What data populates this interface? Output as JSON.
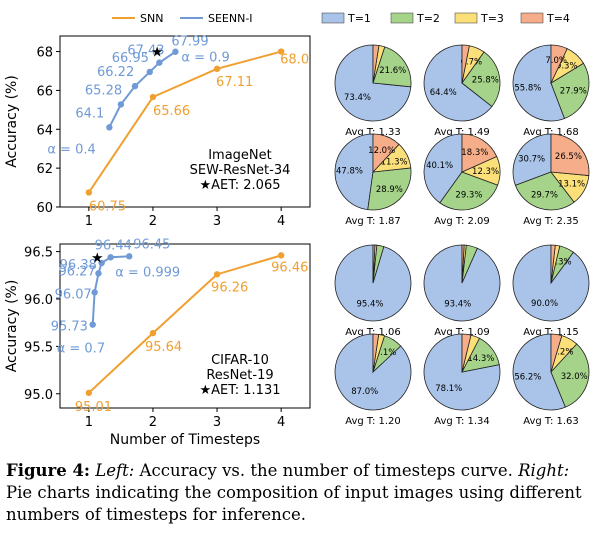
{
  "caption": {
    "label": "Figure 4:",
    "left_word": "Left:",
    "left_text": " Accuracy vs. the number of timesteps curve.",
    "right_word": "Right:",
    "right_text": " Pie charts indicating the composition of input images using different numbers of timesteps for inference."
  },
  "colors": {
    "snn": "#f0a030",
    "seenn": "#6f9ad6",
    "t1": "#a9c4e8",
    "t2": "#a5d38a",
    "t3": "#fbe07a",
    "t4": "#f6ad8a"
  },
  "chart_data": [
    {
      "type": "line",
      "panel": "imagenet-line",
      "legend": [
        "SNN",
        "SEENN-I"
      ],
      "xlabel": "",
      "ylabel": "Accuracy (%)",
      "xlim": [
        0.55,
        4.45
      ],
      "ylim": [
        60,
        68.8
      ],
      "xticks": [
        1,
        2,
        3,
        4
      ],
      "yticks": [
        60,
        62,
        64,
        66,
        68
      ],
      "annotation": [
        "ImageNet",
        "SEW-ResNet-34",
        "★AET: 2.065"
      ],
      "series": [
        {
          "name": "SNN",
          "x": [
            1,
            2,
            3,
            4
          ],
          "y": [
            60.75,
            65.66,
            67.11,
            68.0
          ],
          "labels": [
            "60.75",
            "65.66",
            "67.11",
            "68.0"
          ]
        },
        {
          "name": "SEENN-I",
          "x": [
            1.32,
            1.5,
            1.72,
            1.95,
            2.1,
            2.35
          ],
          "y": [
            64.1,
            65.28,
            66.22,
            66.95,
            67.43,
            67.99
          ],
          "labels": [
            "64.1",
            "65.28",
            "66.22",
            "66.95",
            "67.43",
            "67.99"
          ]
        }
      ],
      "alpha_labels": [
        "α = 0.4",
        "α = 0.9"
      ],
      "star": {
        "x": 2.065,
        "y": 68.0
      }
    },
    {
      "type": "line",
      "panel": "cifar-line",
      "xlabel": "Number of Timesteps",
      "ylabel": "Accuracy (%)",
      "xlim": [
        0.55,
        4.45
      ],
      "ylim": [
        94.85,
        96.58
      ],
      "xticks": [
        1,
        2,
        3,
        4
      ],
      "yticks": [
        95.0,
        95.5,
        96.0,
        96.5
      ],
      "annotation": [
        "CIFAR-10",
        "ResNet-19",
        "★AET: 1.131"
      ],
      "series": [
        {
          "name": "SNN",
          "x": [
            1,
            2,
            3,
            4
          ],
          "y": [
            95.01,
            95.64,
            96.26,
            96.46
          ],
          "labels": [
            "95.01",
            "95.64",
            "96.26",
            "96.46"
          ]
        },
        {
          "name": "SEENN-I",
          "x": [
            1.06,
            1.09,
            1.15,
            1.2,
            1.34,
            1.63
          ],
          "y": [
            95.73,
            96.07,
            96.27,
            96.38,
            96.44,
            96.45
          ],
          "labels": [
            "95.73",
            "96.07",
            "96.27",
            "96.38",
            "96.44",
            "96.45"
          ]
        }
      ],
      "alpha_labels": [
        "α = 0.7",
        "α = 0.999"
      ],
      "star": {
        "x": 1.131,
        "y": 96.44
      }
    },
    {
      "type": "pie",
      "panel": "imagenet-pies",
      "legend": [
        "T=1",
        "T=2",
        "T=3",
        "T=4"
      ],
      "pies": [
        {
          "label": "Avg T: 1.33",
          "values": [
            73.4,
            21.6,
            2.5,
            2.5
          ],
          "shown": [
            "73.4%",
            "21.6%",
            "",
            ""
          ]
        },
        {
          "label": "Avg T: 1.49",
          "values": [
            64.4,
            25.8,
            6.7,
            3.1
          ],
          "shown": [
            "64.4%",
            "25.8%",
            "6.7%",
            ""
          ]
        },
        {
          "label": "Avg T: 1.68",
          "values": [
            55.8,
            27.9,
            9.3,
            7.0
          ],
          "shown": [
            "55.8%",
            "27.9%",
            "9.3%",
            "7.0%"
          ]
        },
        {
          "label": "Avg T: 1.87",
          "values": [
            47.8,
            28.9,
            11.3,
            12.0
          ],
          "shown": [
            "47.8%",
            "28.9%",
            "11.3%",
            "12.0%"
          ]
        },
        {
          "label": "Avg T: 2.09",
          "values": [
            40.1,
            29.3,
            12.3,
            18.3
          ],
          "shown": [
            "40.1%",
            "29.3%",
            "12.3%",
            "18.3%"
          ]
        },
        {
          "label": "Avg T: 2.35",
          "values": [
            30.7,
            29.7,
            13.1,
            26.5
          ],
          "shown": [
            "30.7%",
            "29.7%",
            "13.1%",
            "26.5%"
          ]
        }
      ]
    },
    {
      "type": "pie",
      "panel": "cifar-pies",
      "pies": [
        {
          "label": "Avg T: 1.06",
          "values": [
            95.4,
            3.0,
            0.8,
            0.8
          ],
          "shown": [
            "95.4%",
            "",
            "",
            ""
          ]
        },
        {
          "label": "Avg T: 1.09",
          "values": [
            93.4,
            4.8,
            0.9,
            0.9
          ],
          "shown": [
            "93.4%",
            "",
            "",
            ""
          ]
        },
        {
          "label": "Avg T: 1.15",
          "values": [
            90.0,
            6.3,
            1.9,
            1.8
          ],
          "shown": [
            "90.0%",
            "6.3%",
            "",
            ""
          ]
        },
        {
          "label": "Avg T: 1.20",
          "values": [
            87.0,
            8.1,
            2.5,
            2.4
          ],
          "shown": [
            "87.0%",
            "8.1%",
            "",
            ""
          ]
        },
        {
          "label": "Avg T: 1.34",
          "values": [
            78.1,
            14.3,
            3.8,
            3.8
          ],
          "shown": [
            "78.1%",
            "14.3%",
            "",
            ""
          ]
        },
        {
          "label": "Avg T: 1.63",
          "values": [
            56.2,
            32.0,
            7.2,
            4.6
          ],
          "shown": [
            "56.2%",
            "32.0%",
            "7.2%",
            ""
          ]
        }
      ]
    }
  ]
}
